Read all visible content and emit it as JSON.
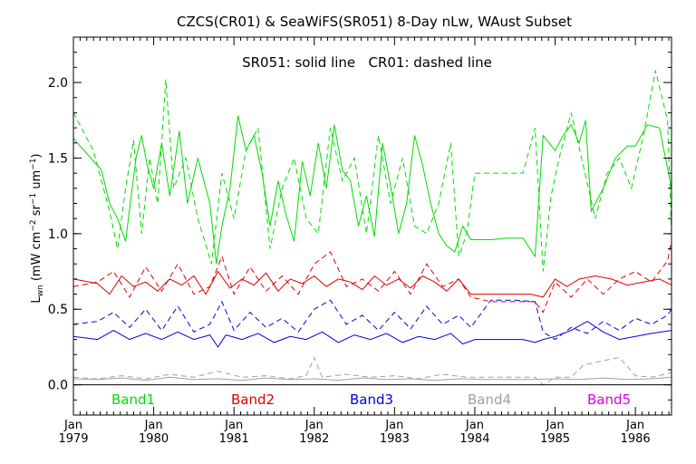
{
  "chart_data": {
    "type": "line",
    "title": "CZCS(CR01) & SeaWiFS(SR051) 8-Day nLw, WAust Subset",
    "subtitle": "SR051: solid line   CR01: dashed line",
    "ylabel": "L_wn (mW cm^-2 sr^-1 um^-1)",
    "ylabel_parts": {
      "base": "L",
      "base_sub": "wn",
      "pre": " (mW cm",
      "exp1": "−2",
      "mid1": " sr",
      "exp2": "−1",
      "mid2": " um",
      "exp3": "−1",
      "post": ")"
    },
    "xlabel": "",
    "xlim": [
      1979.0,
      1986.45
    ],
    "ylim": [
      -0.2,
      2.3
    ],
    "grid": false,
    "x_ticks": [
      {
        "x": 1979,
        "line1": "Jan",
        "line2": "1979"
      },
      {
        "x": 1980,
        "line1": "Jan",
        "line2": "1980"
      },
      {
        "x": 1981,
        "line1": "Jan",
        "line2": "1981"
      },
      {
        "x": 1982,
        "line1": "Jan",
        "line2": "1982"
      },
      {
        "x": 1983,
        "line1": "Jan",
        "line2": "1983"
      },
      {
        "x": 1984,
        "line1": "Jan",
        "line2": "1984"
      },
      {
        "x": 1985,
        "line1": "Jan",
        "line2": "1985"
      },
      {
        "x": 1986,
        "line1": "Jan",
        "line2": "1986"
      }
    ],
    "y_ticks": [
      {
        "y": 0.0,
        "label": "0.0"
      },
      {
        "y": 0.5,
        "label": "0.5"
      },
      {
        "y": 1.0,
        "label": "1.0"
      },
      {
        "y": 1.5,
        "label": "1.5"
      },
      {
        "y": 2.0,
        "label": "2.0"
      }
    ],
    "legend": [
      {
        "label": "Band1",
        "color": "#00dd00"
      },
      {
        "label": "Band2",
        "color": "#dd0000"
      },
      {
        "label": "Band3",
        "color": "#0000dd"
      },
      {
        "label": "Band4",
        "color": "#a0a0a0"
      },
      {
        "label": "Band5",
        "color": "#dd00dd"
      }
    ],
    "legend_placement": "bottom",
    "series": [
      {
        "band": "Band1",
        "style": "solid",
        "color": "#00dd00",
        "x": [
          1979.0,
          1979.35,
          1979.45,
          1979.55,
          1979.65,
          1979.72,
          1979.78,
          1979.85,
          1979.92,
          1980.0,
          1980.1,
          1980.2,
          1980.32,
          1980.42,
          1980.55,
          1980.7,
          1980.78,
          1980.85,
          1980.95,
          1981.05,
          1981.15,
          1981.25,
          1981.35,
          1981.45,
          1981.55,
          1981.65,
          1981.75,
          1981.85,
          1981.95,
          1982.05,
          1982.15,
          1982.25,
          1982.35,
          1982.45,
          1982.55,
          1982.65,
          1982.75,
          1982.85,
          1982.95,
          1983.05,
          1983.15,
          1983.25,
          1983.35,
          1983.45,
          1983.55,
          1983.65,
          1983.75,
          1983.85,
          1983.95,
          1984.0,
          1984.2,
          1984.4,
          1984.6,
          1984.75,
          1984.85,
          1985.0,
          1985.1,
          1985.2,
          1985.3,
          1985.38,
          1985.45,
          1985.6,
          1985.75,
          1985.9,
          1986.0,
          1986.15,
          1986.3,
          1986.45
        ],
        "y": [
          1.63,
          1.42,
          1.2,
          1.1,
          0.95,
          1.25,
          1.5,
          1.65,
          1.45,
          1.3,
          1.6,
          1.25,
          1.68,
          1.2,
          1.5,
          1.2,
          0.8,
          1.05,
          1.3,
          1.78,
          1.55,
          1.65,
          1.4,
          1.05,
          1.35,
          1.12,
          0.95,
          1.48,
          1.25,
          1.6,
          1.3,
          1.72,
          1.42,
          1.35,
          1.05,
          1.25,
          0.98,
          1.6,
          1.32,
          1.0,
          1.2,
          1.65,
          1.45,
          1.2,
          1.0,
          0.92,
          0.88,
          1.05,
          0.96,
          0.96,
          0.96,
          0.97,
          0.97,
          0.85,
          1.65,
          1.55,
          1.65,
          1.72,
          1.6,
          1.75,
          1.15,
          1.3,
          1.5,
          1.58,
          1.58,
          1.72,
          1.7,
          1.3
        ]
      },
      {
        "band": "Band1",
        "style": "dashed",
        "color": "#00dd00",
        "x": [
          1979.0,
          1979.25,
          1979.45,
          1979.55,
          1979.65,
          1979.75,
          1979.85,
          1979.95,
          1980.05,
          1980.15,
          1980.25,
          1980.4,
          1980.55,
          1980.72,
          1980.85,
          1981.0,
          1981.15,
          1981.3,
          1981.45,
          1981.6,
          1981.75,
          1981.9,
          1982.05,
          1982.2,
          1982.35,
          1982.5,
          1982.65,
          1982.8,
          1982.95,
          1983.1,
          1983.25,
          1983.4,
          1983.55,
          1983.7,
          1983.8,
          1983.9,
          1984.0,
          1984.3,
          1984.6,
          1984.75,
          1984.85,
          1984.95,
          1985.05,
          1985.2,
          1985.35,
          1985.5,
          1985.65,
          1985.8,
          1985.95,
          1986.1,
          1986.25,
          1986.4,
          1986.45
        ],
        "y": [
          1.8,
          1.55,
          1.15,
          0.9,
          1.3,
          1.62,
          1.0,
          1.5,
          1.2,
          2.02,
          1.3,
          1.5,
          1.1,
          0.8,
          1.4,
          1.1,
          1.55,
          1.7,
          0.9,
          1.3,
          1.5,
          1.1,
          1.0,
          1.7,
          1.35,
          1.5,
          1.0,
          1.65,
          1.2,
          1.5,
          1.05,
          1.0,
          1.2,
          1.6,
          0.85,
          1.0,
          1.4,
          1.4,
          1.4,
          1.7,
          0.75,
          1.25,
          1.5,
          1.8,
          1.45,
          1.1,
          1.4,
          1.5,
          1.3,
          1.65,
          2.08,
          1.75,
          1.0
        ]
      },
      {
        "band": "Band2",
        "style": "solid",
        "color": "#dd0000",
        "x": [
          1979.0,
          1979.3,
          1979.45,
          1979.6,
          1979.75,
          1979.9,
          1980.05,
          1980.2,
          1980.35,
          1980.5,
          1980.65,
          1980.8,
          1980.95,
          1981.1,
          1981.25,
          1981.4,
          1981.55,
          1981.7,
          1981.85,
          1982.0,
          1982.15,
          1982.3,
          1982.45,
          1982.6,
          1982.75,
          1982.9,
          1983.05,
          1983.2,
          1983.35,
          1983.5,
          1983.65,
          1983.8,
          1983.95,
          1984.1,
          1984.4,
          1984.7,
          1984.85,
          1985.0,
          1985.15,
          1985.3,
          1985.5,
          1985.7,
          1985.9,
          1986.1,
          1986.3,
          1986.45
        ],
        "y": [
          0.7,
          0.67,
          0.6,
          0.72,
          0.65,
          0.68,
          0.62,
          0.7,
          0.66,
          0.72,
          0.6,
          0.75,
          0.64,
          0.7,
          0.66,
          0.74,
          0.62,
          0.7,
          0.67,
          0.72,
          0.65,
          0.7,
          0.68,
          0.63,
          0.72,
          0.66,
          0.7,
          0.64,
          0.72,
          0.68,
          0.62,
          0.7,
          0.6,
          0.6,
          0.6,
          0.6,
          0.58,
          0.7,
          0.65,
          0.7,
          0.72,
          0.7,
          0.66,
          0.68,
          0.7,
          0.66
        ]
      },
      {
        "band": "Band2",
        "style": "dashed",
        "color": "#dd0000",
        "x": [
          1979.0,
          1979.3,
          1979.5,
          1979.7,
          1979.9,
          1980.1,
          1980.3,
          1980.5,
          1980.7,
          1980.85,
          1981.0,
          1981.2,
          1981.4,
          1981.6,
          1981.8,
          1982.0,
          1982.2,
          1982.4,
          1982.6,
          1982.8,
          1983.0,
          1983.2,
          1983.4,
          1983.6,
          1983.8,
          1983.95,
          1984.2,
          1984.5,
          1984.75,
          1984.85,
          1985.0,
          1985.2,
          1985.4,
          1985.6,
          1985.8,
          1986.0,
          1986.2,
          1986.4,
          1986.45
        ],
        "y": [
          0.65,
          0.68,
          0.75,
          0.58,
          0.78,
          0.62,
          0.8,
          0.6,
          0.65,
          0.85,
          0.6,
          0.78,
          0.62,
          0.72,
          0.6,
          0.8,
          0.88,
          0.65,
          0.7,
          0.62,
          0.75,
          0.6,
          0.8,
          0.65,
          0.7,
          0.58,
          0.55,
          0.55,
          0.55,
          0.48,
          0.68,
          0.58,
          0.7,
          0.6,
          0.7,
          0.75,
          0.68,
          0.82,
          0.95
        ]
      },
      {
        "band": "Band3",
        "style": "solid",
        "color": "#0000dd",
        "x": [
          1979.0,
          1979.3,
          1979.5,
          1979.7,
          1979.9,
          1980.1,
          1980.3,
          1980.5,
          1980.7,
          1980.8,
          1980.9,
          1981.1,
          1981.3,
          1981.5,
          1981.7,
          1981.9,
          1982.1,
          1982.3,
          1982.5,
          1982.7,
          1982.9,
          1983.1,
          1983.3,
          1983.5,
          1983.7,
          1983.85,
          1984.0,
          1984.3,
          1984.6,
          1984.75,
          1984.85,
          1985.0,
          1985.2,
          1985.4,
          1985.6,
          1985.8,
          1986.0,
          1986.2,
          1986.45
        ],
        "y": [
          0.32,
          0.3,
          0.36,
          0.3,
          0.34,
          0.3,
          0.35,
          0.3,
          0.33,
          0.25,
          0.33,
          0.3,
          0.34,
          0.28,
          0.32,
          0.3,
          0.35,
          0.28,
          0.33,
          0.3,
          0.34,
          0.28,
          0.32,
          0.3,
          0.34,
          0.27,
          0.3,
          0.3,
          0.3,
          0.28,
          0.3,
          0.32,
          0.36,
          0.42,
          0.35,
          0.3,
          0.32,
          0.34,
          0.36
        ]
      },
      {
        "band": "Band3",
        "style": "dashed",
        "color": "#0000dd",
        "x": [
          1979.0,
          1979.3,
          1979.5,
          1979.7,
          1979.9,
          1980.1,
          1980.3,
          1980.5,
          1980.7,
          1980.85,
          1981.0,
          1981.2,
          1981.4,
          1981.6,
          1981.8,
          1982.0,
          1982.2,
          1982.4,
          1982.6,
          1982.8,
          1983.0,
          1983.2,
          1983.4,
          1983.6,
          1983.8,
          1983.95,
          1984.2,
          1984.5,
          1984.75,
          1984.85,
          1985.0,
          1985.2,
          1985.4,
          1985.6,
          1985.8,
          1986.0,
          1986.2,
          1986.4,
          1986.45
        ],
        "y": [
          0.4,
          0.42,
          0.48,
          0.38,
          0.5,
          0.36,
          0.52,
          0.35,
          0.4,
          0.55,
          0.36,
          0.48,
          0.38,
          0.44,
          0.35,
          0.5,
          0.56,
          0.4,
          0.46,
          0.36,
          0.48,
          0.37,
          0.52,
          0.4,
          0.46,
          0.38,
          0.56,
          0.56,
          0.55,
          0.35,
          0.3,
          0.38,
          0.34,
          0.42,
          0.36,
          0.44,
          0.4,
          0.46,
          0.5
        ]
      },
      {
        "band": "Band4",
        "style": "solid",
        "color": "#a0a0a0",
        "x": [
          1979.0,
          1979.3,
          1979.6,
          1979.9,
          1980.2,
          1980.5,
          1980.8,
          1981.1,
          1981.4,
          1981.7,
          1982.0,
          1982.3,
          1982.6,
          1982.9,
          1983.2,
          1983.5,
          1983.8,
          1984.1,
          1984.4,
          1984.7,
          1985.0,
          1985.3,
          1985.6,
          1985.9,
          1986.2,
          1986.45
        ],
        "y": [
          0.04,
          0.035,
          0.045,
          0.03,
          0.05,
          0.035,
          0.04,
          0.03,
          0.045,
          0.035,
          0.04,
          0.03,
          0.045,
          0.035,
          0.04,
          0.03,
          0.04,
          0.035,
          0.035,
          0.035,
          0.04,
          0.035,
          0.045,
          0.035,
          0.04,
          0.05
        ]
      },
      {
        "band": "Band4",
        "style": "dashed",
        "color": "#a0a0a0",
        "x": [
          1979.0,
          1979.3,
          1979.6,
          1979.9,
          1980.2,
          1980.5,
          1980.8,
          1981.1,
          1981.4,
          1981.7,
          1981.9,
          1982.0,
          1982.1,
          1982.4,
          1982.7,
          1983.0,
          1983.3,
          1983.6,
          1983.9,
          1984.2,
          1984.5,
          1984.75,
          1984.85,
          1985.0,
          1985.2,
          1985.35,
          1985.6,
          1985.8,
          1986.0,
          1986.2,
          1986.45
        ],
        "y": [
          0.05,
          0.04,
          0.06,
          0.04,
          0.07,
          0.05,
          0.09,
          0.05,
          0.06,
          0.04,
          0.06,
          0.18,
          0.05,
          0.07,
          0.05,
          0.06,
          0.04,
          0.07,
          0.05,
          0.05,
          0.05,
          0.05,
          0.0,
          0.05,
          0.05,
          0.13,
          0.16,
          0.18,
          0.06,
          0.05,
          0.08
        ]
      }
    ]
  }
}
